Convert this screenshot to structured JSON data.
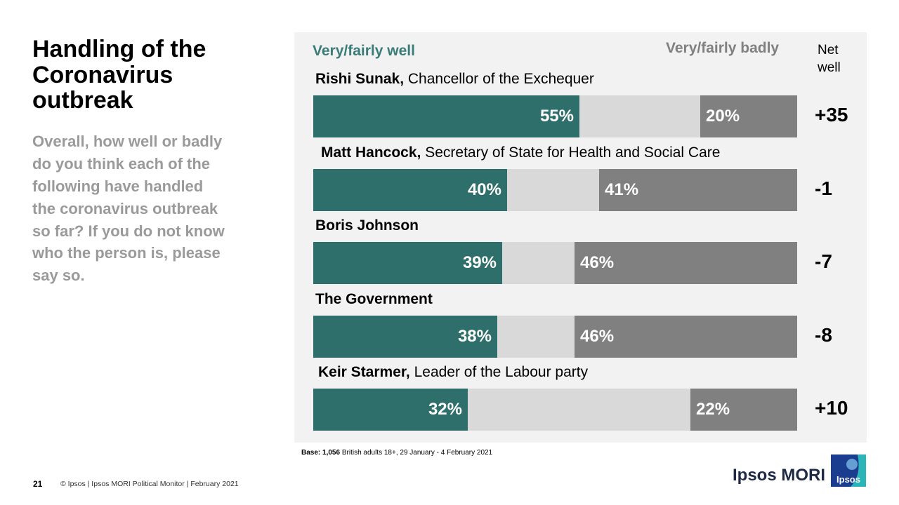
{
  "title": "Handling of the\nCoronavirus\noutbreak",
  "question": "Overall, how well or badly\ndo you think each of the\nfollowing have handled\nthe coronavirus outbreak\nso far?  If you do not know\nwho the person is, please\nsay so.",
  "colors": {
    "well": "#2e6f6b",
    "dont_know": "#d9d9d9",
    "badly": "#808080",
    "legend_well": "#3a7d78"
  },
  "chart_data": {
    "type": "bar",
    "orientation": "horizontal-stacked",
    "legend": {
      "well": "Very/fairly well",
      "badly": "Very/fairly badly"
    },
    "net_header": "Net\nwell",
    "categories": [
      {
        "name": "Rishi Sunak,",
        "role": " Chancellor of the Exchequer"
      },
      {
        "name": "Matt Hancock,",
        "role": " Secretary of State for Health and Social Care"
      },
      {
        "name": "Boris Johnson",
        "role": ""
      },
      {
        "name": "The Government",
        "role": ""
      },
      {
        "name": "Keir Starmer,",
        "role": " Leader of the Labour party"
      }
    ],
    "series": [
      {
        "name": "Very/fairly well",
        "values": [
          55,
          40,
          39,
          38,
          32
        ],
        "labels": [
          "55%",
          "40%",
          "39%",
          "38%",
          "32%"
        ]
      },
      {
        "name": "Very/fairly badly",
        "values": [
          20,
          41,
          46,
          46,
          22
        ],
        "labels": [
          "20%",
          "41%",
          "46%",
          "46%",
          "22%"
        ]
      }
    ],
    "net_well": [
      "+35",
      "-1",
      "-7",
      "-8",
      "+10"
    ],
    "xlim": [
      0,
      100
    ]
  },
  "base": {
    "label": "Base:",
    "count": "1,056",
    "text": " British adults 18+, 29 January - 4 February 2021"
  },
  "page_number": "21",
  "footer": "© Ipsos | Ipsos MORI Political Monitor | February 2021",
  "brand": {
    "name": "Ipsos MORI",
    "logo_text": "Ipsos",
    "logo_color": "#1a3d8f",
    "logo_accent": "#2bb5b8"
  }
}
